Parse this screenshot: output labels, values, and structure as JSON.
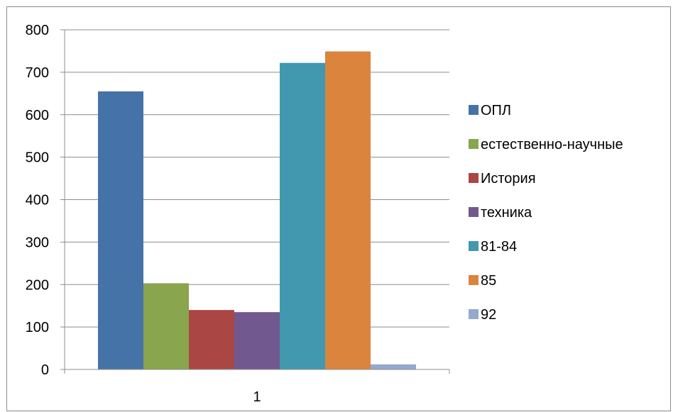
{
  "chart_data": {
    "type": "bar",
    "categories": [
      "1"
    ],
    "series": [
      {
        "name": "ОПЛ",
        "values": [
          655
        ],
        "color": "#4572A7"
      },
      {
        "name": "естественно-научные",
        "values": [
          203
        ],
        "color": "#89A54E"
      },
      {
        "name": "История",
        "values": [
          140
        ],
        "color": "#AA4643"
      },
      {
        "name": "техника",
        "values": [
          135
        ],
        "color": "#71588F"
      },
      {
        "name": "81-84",
        "values": [
          722
        ],
        "color": "#4198AF"
      },
      {
        "name": "85",
        "values": [
          749
        ],
        "color": "#DB843D"
      },
      {
        "name": "92",
        "values": [
          12
        ],
        "color": "#93A9CF"
      }
    ],
    "ylim": [
      0,
      800
    ],
    "yticks": [
      0,
      100,
      200,
      300,
      400,
      500,
      600,
      700,
      800
    ],
    "grid": true,
    "legend": "right"
  }
}
